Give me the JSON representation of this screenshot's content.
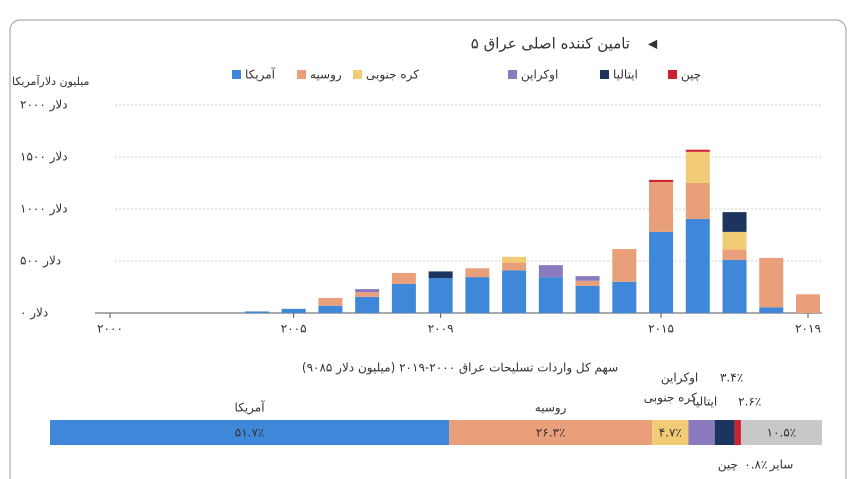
{
  "chart_data": [
    {
      "type": "stacked-bar",
      "title": "۵ تامین کننده اصلی عراق",
      "y_label": "میلیون دلارآمریکا",
      "x": [
        2000,
        2001,
        2002,
        2003,
        2004,
        2005,
        2006,
        2007,
        2008,
        2009,
        2010,
        2011,
        2012,
        2013,
        2014,
        2015,
        2016,
        2017,
        2018,
        2019
      ],
      "xlim": [
        2000,
        2019
      ],
      "xticks": [
        {
          "value": 2000,
          "label": "۲۰۰۰"
        },
        {
          "value": 2005,
          "label": "۲۰۰۵"
        },
        {
          "value": 2009,
          "label": "۲۰۰۹"
        },
        {
          "value": 2015,
          "label": "۲۰۱۵"
        },
        {
          "value": 2019,
          "label": "۲۰۱۹"
        }
      ],
      "ylim": [
        0,
        2000
      ],
      "yticks": [
        {
          "value": 0,
          "label": "۰ دلار"
        },
        {
          "value": 500,
          "label": "۵۰۰ دلار"
        },
        {
          "value": 1000,
          "label": "۱۰۰۰ دلار"
        },
        {
          "value": 1500,
          "label": "۱۵۰۰ دلار"
        },
        {
          "value": 2000,
          "label": "۲۰۰۰ دلار"
        }
      ],
      "grid": true,
      "series": [
        {
          "name": "آمریکا",
          "color": "#3f87d8",
          "values": [
            0,
            0,
            0,
            0,
            15,
            40,
            70,
            155,
            280,
            335,
            345,
            410,
            345,
            260,
            300,
            780,
            905,
            510,
            55,
            0
          ]
        },
        {
          "name": "روسیه",
          "color": "#e9a07a",
          "values": [
            0,
            0,
            0,
            0,
            0,
            0,
            75,
            45,
            105,
            0,
            85,
            75,
            0,
            50,
            315,
            480,
            345,
            100,
            475,
            180
          ]
        },
        {
          "name": "کره جنوبی",
          "color": "#f2cb77",
          "values": [
            0,
            0,
            0,
            0,
            0,
            0,
            0,
            0,
            0,
            0,
            0,
            55,
            0,
            0,
            0,
            0,
            300,
            170,
            0,
            0
          ]
        },
        {
          "name": "اوکراین",
          "color": "#8a7bbf",
          "values": [
            0,
            0,
            0,
            0,
            0,
            0,
            0,
            30,
            0,
            0,
            0,
            0,
            115,
            45,
            0,
            0,
            0,
            0,
            0,
            0
          ]
        },
        {
          "name": "ایتالیا",
          "color": "#1c355e",
          "values": [
            0,
            0,
            0,
            0,
            0,
            0,
            0,
            0,
            0,
            65,
            0,
            0,
            0,
            0,
            0,
            0,
            0,
            190,
            0,
            0
          ]
        },
        {
          "name": "چین",
          "color": "#d0202e",
          "values": [
            0,
            0,
            0,
            0,
            0,
            0,
            0,
            0,
            0,
            0,
            0,
            0,
            0,
            0,
            0,
            20,
            20,
            0,
            0,
            0
          ]
        }
      ]
    },
    {
      "type": "share-bar",
      "title": "سهم کل واردات تسلیحات عراق ۲۰۰۰-۲۰۱۹ (میلیون دلار ۹۰۸۵)",
      "categories": [
        "آمریکا",
        "روسیه",
        "کره جنوبی",
        "اوکراین",
        "ایتالیا",
        "چین",
        "سایر"
      ],
      "values": [
        51.7,
        26.3,
        4.7,
        3.4,
        2.6,
        0.8,
        10.5
      ],
      "value_labels": [
        "۵۱.۷٪",
        "۲۶.۳٪",
        "۴.۷٪",
        "۳.۴٪",
        "۲.۶٪",
        "۰.۸٪",
        "۱۰.۵٪"
      ],
      "colors": [
        "#3f87d8",
        "#e9a07a",
        "#f2cb77",
        "#8a7bbf",
        "#1c355e",
        "#d0202e",
        "#c8c8c8"
      ]
    }
  ]
}
